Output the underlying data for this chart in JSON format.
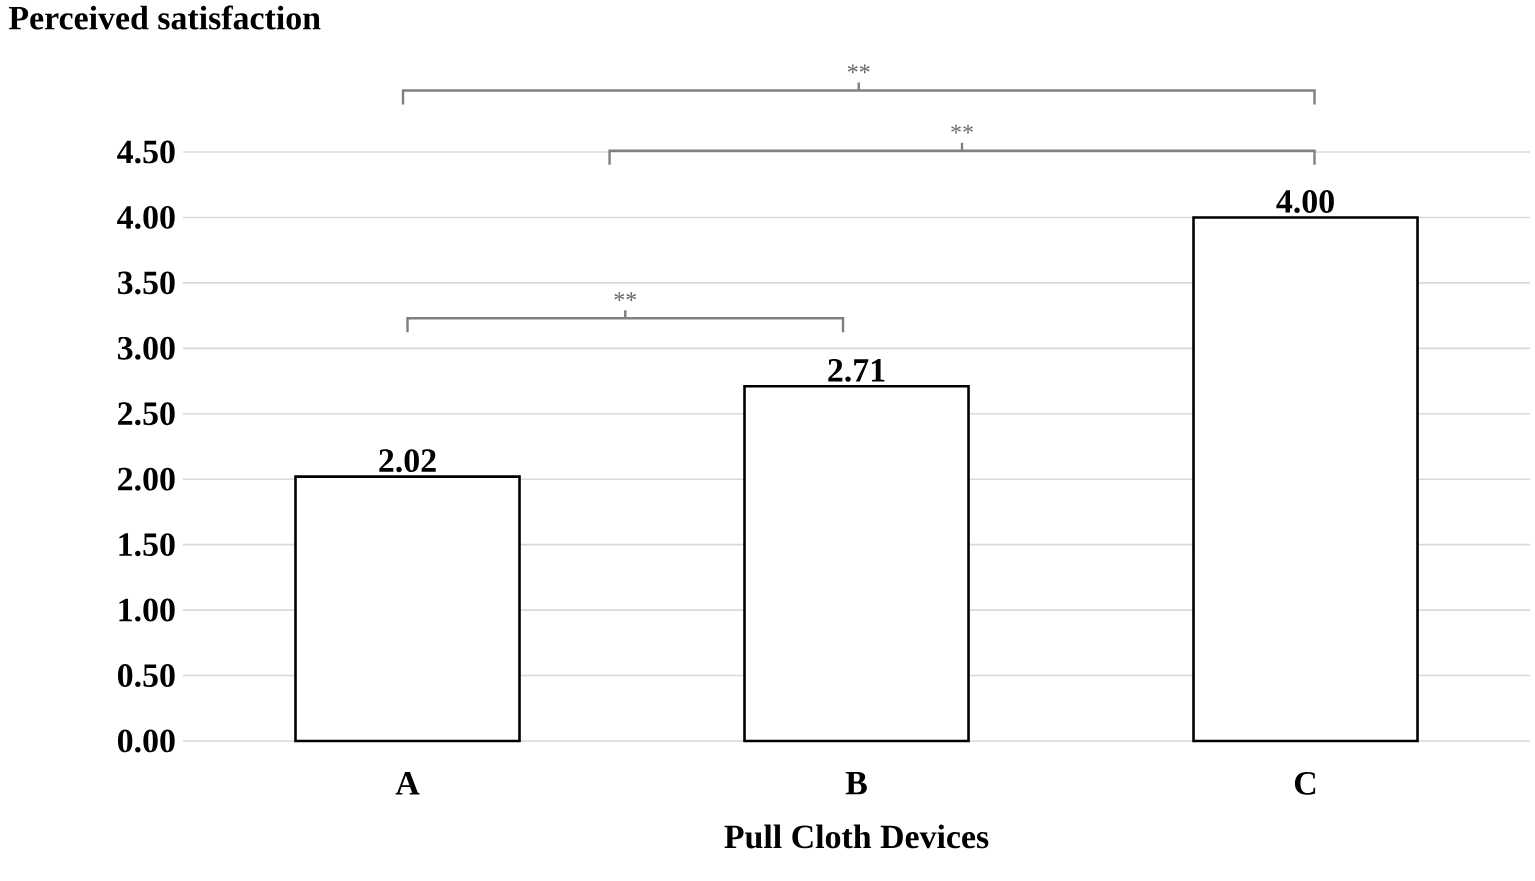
{
  "chart_data": {
    "type": "bar",
    "ylabel": "Perceived satisfaction",
    "xlabel": "Pull Cloth Devices",
    "categories": [
      "A",
      "B",
      "C"
    ],
    "values": [
      2.02,
      2.71,
      4.0
    ],
    "value_labels": [
      "2.02",
      "2.71",
      "4.00"
    ],
    "color": "#ffffff",
    "ylim": [
      0,
      4.5
    ],
    "yticks": [
      {
        "value": 0,
        "label": "0.00"
      },
      {
        "value": 0.5,
        "label": "0.50"
      },
      {
        "value": 1,
        "label": "1.00"
      },
      {
        "value": 1.5,
        "label": "1.50"
      },
      {
        "value": 2,
        "label": "2.00"
      },
      {
        "value": 2.5,
        "label": "2.50"
      },
      {
        "value": 3,
        "label": "3.00"
      },
      {
        "value": 3.5,
        "label": "3.50"
      },
      {
        "value": 4,
        "label": "4.00"
      },
      {
        "value": 4.5,
        "label": "4.50"
      }
    ],
    "grid": "y",
    "annotations": [
      "**",
      "**",
      "**"
    ]
  }
}
